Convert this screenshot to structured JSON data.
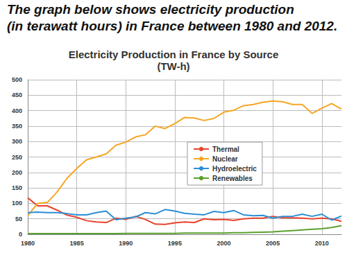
{
  "heading": [
    "The graph below shows electricity production",
    "(in terawatt hours) in France between 1980 and 2012."
  ],
  "chart_data": {
    "type": "line",
    "title": "Electricity Production in France by Source",
    "subtitle": "(TW-h)",
    "x": [
      1980,
      1981,
      1982,
      1983,
      1984,
      1985,
      1986,
      1987,
      1988,
      1989,
      1990,
      1991,
      1992,
      1993,
      1994,
      1995,
      1996,
      1997,
      1998,
      1999,
      2000,
      2001,
      2002,
      2003,
      2004,
      2005,
      2006,
      2007,
      2008,
      2009,
      2010,
      2011,
      2012
    ],
    "series": [
      {
        "name": "Thermal",
        "color": "#e8432c",
        "values": [
          118,
          92,
          92,
          78,
          62,
          55,
          44,
          40,
          38,
          52,
          48,
          58,
          48,
          33,
          32,
          37,
          40,
          38,
          50,
          47,
          48,
          45,
          50,
          52,
          52,
          58,
          53,
          53,
          52,
          50,
          52,
          50,
          42
        ]
      },
      {
        "name": "Nuclear",
        "color": "#f5a623",
        "values": [
          60,
          100,
          103,
          137,
          181,
          213,
          241,
          250,
          260,
          288,
          298,
          315,
          322,
          350,
          342,
          358,
          378,
          376,
          368,
          375,
          395,
          401,
          416,
          420,
          427,
          431,
          429,
          420,
          420,
          391,
          408,
          423,
          405
        ]
      },
      {
        "name": "Hydroelectric",
        "color": "#2a8fd6",
        "values": [
          70,
          72,
          70,
          70,
          67,
          63,
          63,
          70,
          75,
          47,
          52,
          56,
          70,
          66,
          80,
          75,
          68,
          65,
          63,
          74,
          70,
          77,
          63,
          60,
          61,
          52,
          58,
          58,
          65,
          58,
          65,
          46,
          59
        ]
      },
      {
        "name": "Renewables",
        "color": "#5aa02c",
        "values": [
          2,
          2,
          2,
          2,
          2,
          2,
          2,
          2,
          2,
          2,
          3,
          3,
          3,
          3,
          3,
          3,
          4,
          4,
          4,
          4,
          4,
          5,
          5,
          6,
          7,
          8,
          10,
          12,
          14,
          16,
          18,
          22,
          28
        ]
      }
    ],
    "xlim": [
      1980,
      2012
    ],
    "xticks": [
      1980,
      1985,
      1990,
      1995,
      2000,
      2005,
      2010
    ],
    "ylim": [
      0,
      500
    ],
    "yticks": [
      0,
      50,
      100,
      150,
      200,
      250,
      300,
      350,
      400,
      450,
      500
    ],
    "grid": true,
    "legend": "center"
  }
}
